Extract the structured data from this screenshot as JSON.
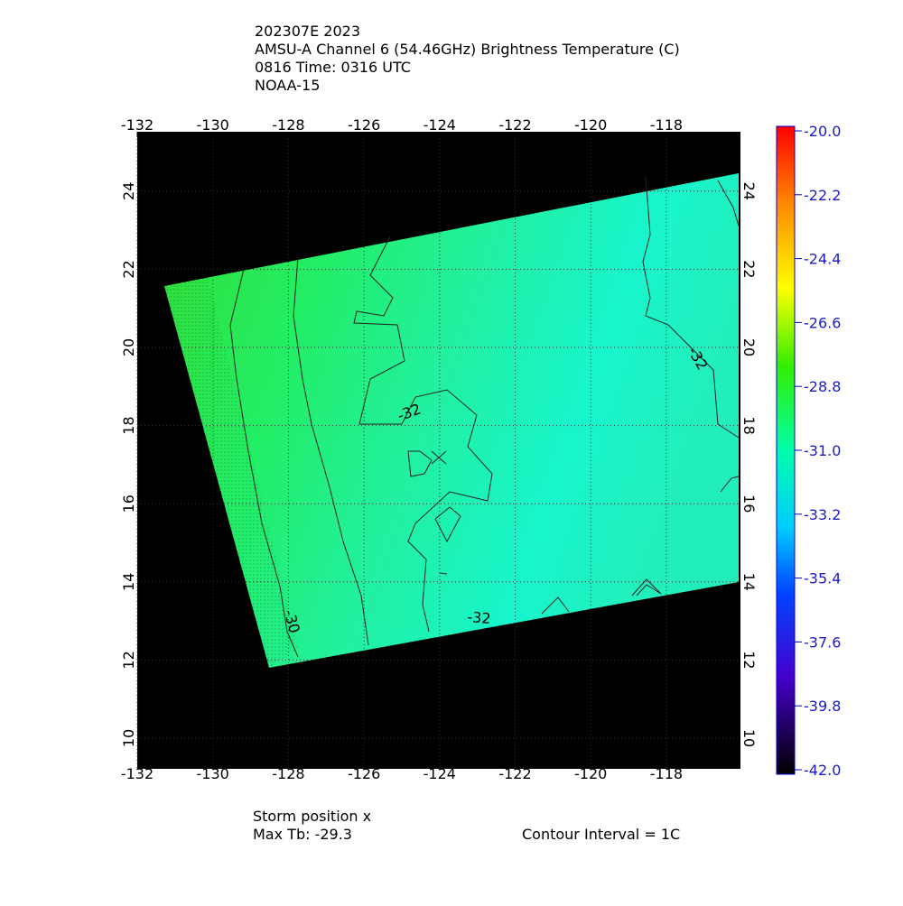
{
  "header": {
    "lines": [
      "202307E 2023",
      "AMSU-A Channel 6 (54.46GHz) Brightness Temperature (C)",
      "0816 Time: 0316 UTC",
      "NOAA-15"
    ]
  },
  "map": {
    "lon_ticks": [
      "-132",
      "-130",
      "-128",
      "-126",
      "-124",
      "-122",
      "-120",
      "-118"
    ],
    "lat_ticks": [
      "10",
      "12",
      "14",
      "16",
      "18",
      "20",
      "22",
      "24"
    ],
    "contour_labels": [
      "-32",
      "-32",
      "-32",
      "-30"
    ]
  },
  "colorbar": {
    "labels": [
      "-20.0",
      "-22.2",
      "-24.4",
      "-26.6",
      "-28.8",
      "-31.0",
      "-33.2",
      "-35.4",
      "-37.6",
      "-39.8",
      "-42.0"
    ]
  },
  "footer": {
    "storm": "Storm position x",
    "max_tb": "Max Tb: -29.3",
    "interval": "Contour Interval = 1C"
  }
}
